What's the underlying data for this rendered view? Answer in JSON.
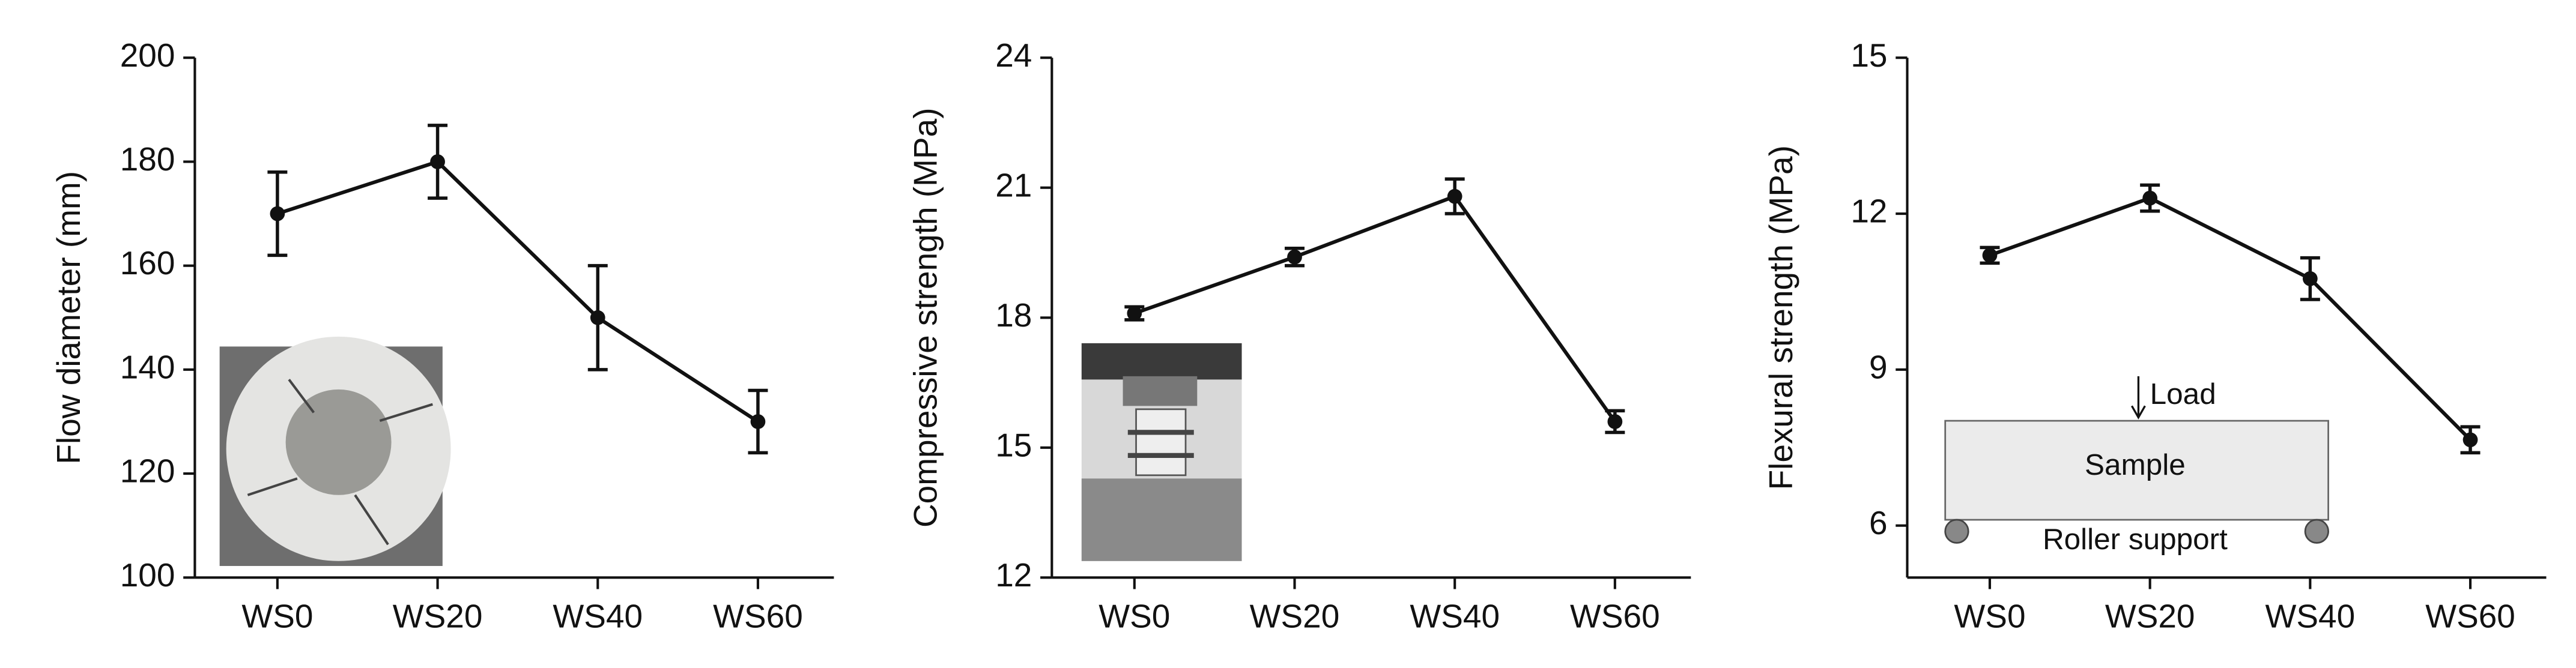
{
  "chart_data": [
    {
      "type": "line",
      "ylabel": "Flow diameter (mm)",
      "categories": [
        "WS0",
        "WS20",
        "WS40",
        "WS60"
      ],
      "values": [
        170,
        180,
        150,
        130
      ],
      "errors": [
        8,
        7,
        10,
        6
      ],
      "color": "#111111",
      "ylim": [
        100,
        200
      ],
      "yticks": [
        100,
        120,
        140,
        160,
        180,
        200
      ]
    },
    {
      "type": "line",
      "ylabel": "Compressive strength (MPa)",
      "categories": [
        "WS0",
        "WS20",
        "WS40",
        "WS60"
      ],
      "values": [
        18.1,
        19.4,
        20.8,
        15.6
      ],
      "errors": [
        0.15,
        0.2,
        0.4,
        0.25
      ],
      "color": "#111111",
      "ylim": [
        12,
        24
      ],
      "yticks": [
        12,
        15,
        18,
        21,
        24
      ]
    },
    {
      "type": "line",
      "ylabel": "Flexural strength (MPa)",
      "categories": [
        "WS0",
        "WS20",
        "WS40",
        "WS60"
      ],
      "values": [
        11.2,
        12.3,
        10.75,
        7.65
      ],
      "errors": [
        0.15,
        0.25,
        0.4,
        0.25
      ],
      "color": "#111111",
      "ylim": [
        5,
        15
      ],
      "yticks": [
        6,
        9,
        12,
        15
      ],
      "annotations": [
        "Load",
        "Sample",
        "Roller support"
      ]
    }
  ]
}
